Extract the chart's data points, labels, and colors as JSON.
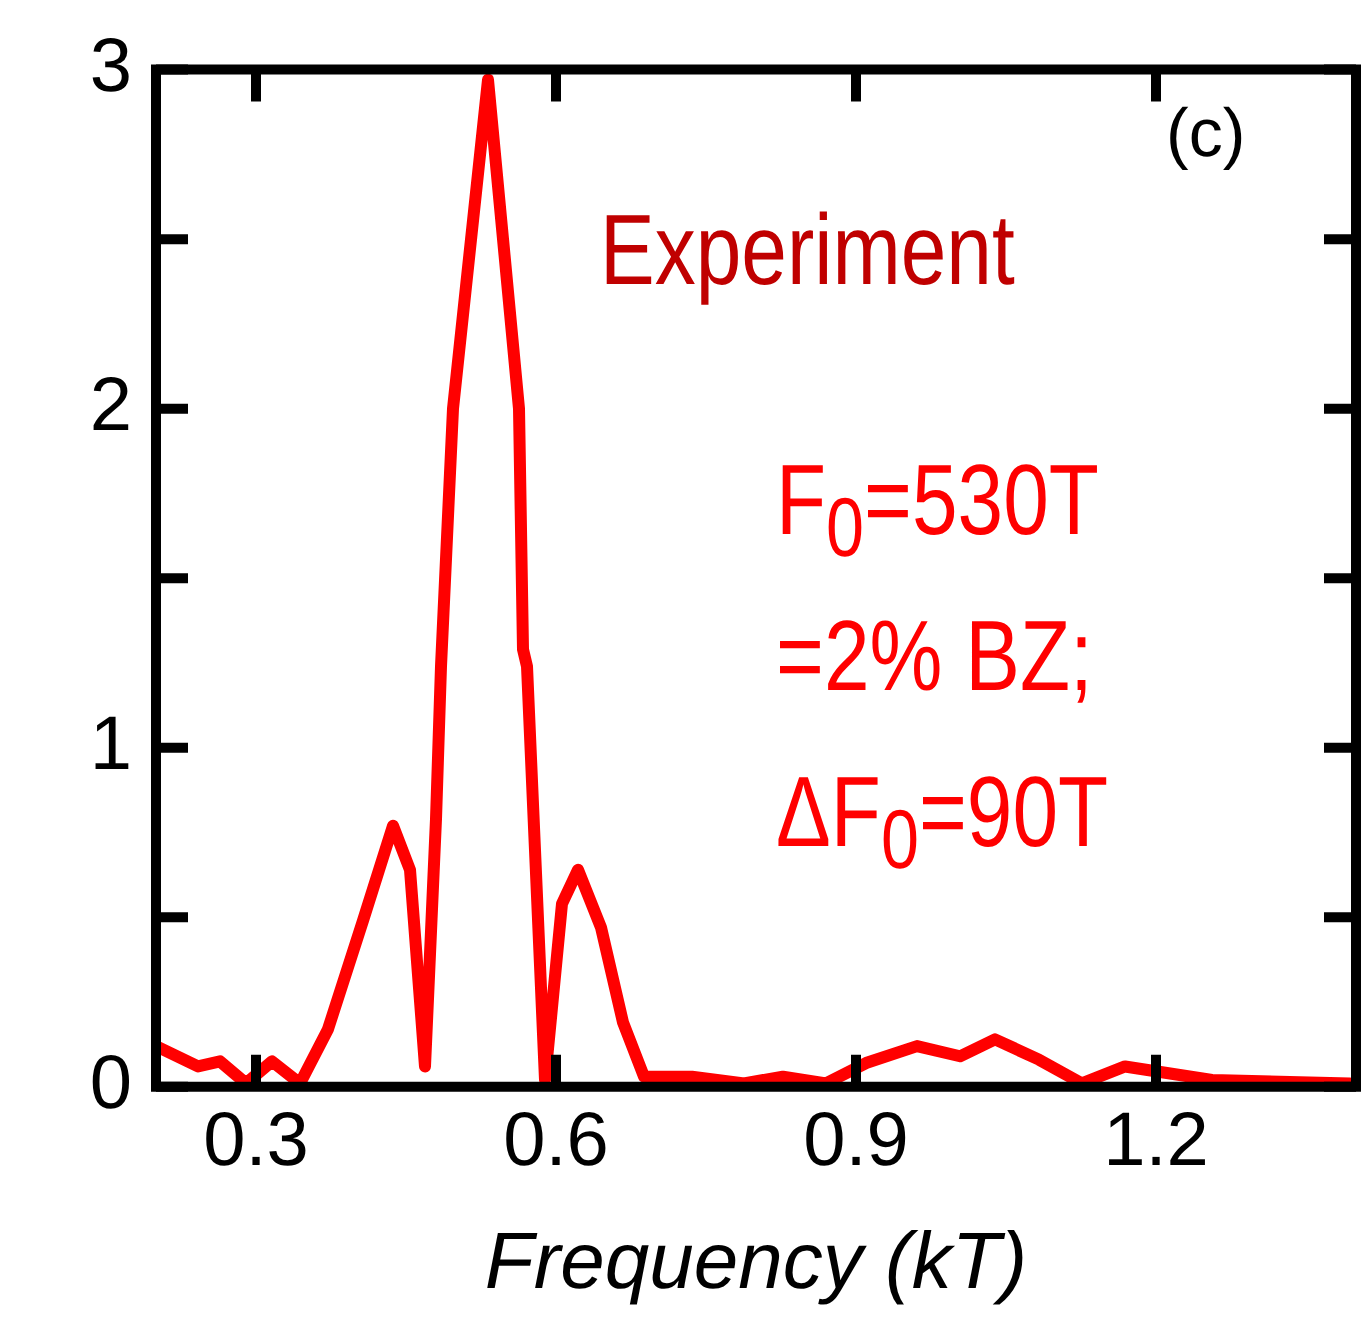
{
  "chart_data": {
    "type": "line",
    "xlabel": "Frequency (kT)",
    "annotations": [
      "(c)",
      "Experiment",
      "F$_{0}$=530T",
      "=2% BZ;",
      "ΔF$_{0}$=90T"
    ],
    "xlim": [
      0.2,
      1.4
    ],
    "xticks": [
      0.3,
      0.6,
      0.9,
      1.2
    ],
    "ylim": [
      0,
      3
    ],
    "yticks": [
      0,
      {
        "value": 0.5,
        "label": null
      },
      1,
      {
        "value": 1.5,
        "label": null
      },
      2,
      {
        "value": 2.5,
        "label": null
      },
      3
    ],
    "grid": false,
    "legend": false,
    "marker": "none",
    "line_style": "solid",
    "series": [
      {
        "color": "#ff0000",
        "x": [
          0.2,
          0.242,
          0.264,
          0.29,
          0.316,
          0.344,
          0.372,
          0.407,
          0.437,
          0.454,
          0.469,
          0.48,
          0.485,
          0.497,
          0.532,
          0.563,
          0.567,
          0.571,
          0.589,
          0.606,
          0.622,
          0.645,
          0.667,
          0.688,
          0.736,
          0.788,
          0.827,
          0.87,
          0.91,
          0.961,
          1.004,
          1.039,
          1.083,
          1.126,
          1.169,
          1.256,
          1.394
        ],
        "values": [
          0.12,
          0.06,
          0.075,
          0.01,
          0.075,
          0.01,
          0.17,
          0.49,
          0.77,
          0.64,
          0.06,
          0.79,
          1.24,
          2.0,
          2.97,
          2.0,
          1.29,
          1.24,
          0.02,
          0.54,
          0.64,
          0.47,
          0.19,
          0.03,
          0.03,
          0.01,
          0.03,
          0.01,
          0.07,
          0.12,
          0.09,
          0.14,
          0.08,
          0.01,
          0.06,
          0.02,
          0.01
        ]
      }
    ]
  }
}
